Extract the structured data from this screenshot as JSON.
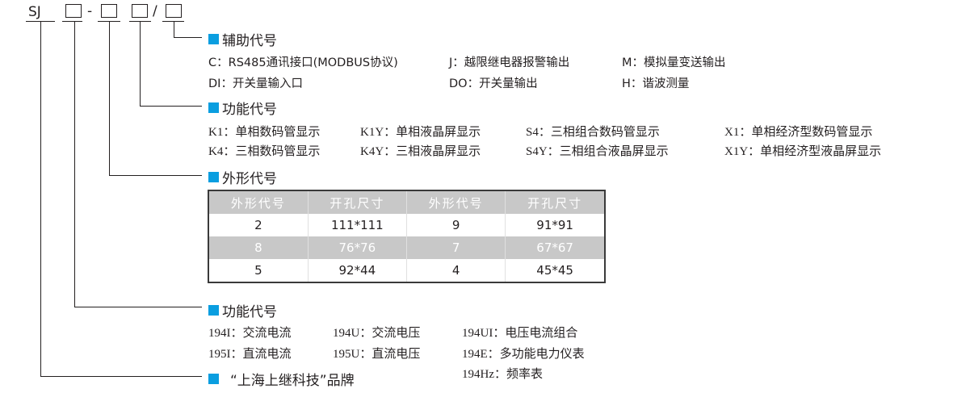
{
  "model": {
    "prefix": "SJ",
    "separator1": "-",
    "separator2": "/"
  },
  "colors": {
    "accent": "#0a9ee0"
  },
  "aux": {
    "title": "辅助代号",
    "items": [
      {
        "text": "C：RS485通讯接口(MODBUS协议)"
      },
      {
        "text": "J：越限继电器报警输出"
      },
      {
        "text": "M：模拟量变送输出"
      },
      {
        "text": "DI：开关量输入口"
      },
      {
        "text": "DO：开关量输出"
      },
      {
        "text": "H：谐波测量"
      }
    ]
  },
  "display": {
    "title": "功能代号",
    "items": [
      {
        "text": "K1：单相数码管显示"
      },
      {
        "text": "K1Y：单相液晶屏显示"
      },
      {
        "text": "S4：三相组合数码管显示"
      },
      {
        "text": "X1：单相经济型数码管显示"
      },
      {
        "text": "K4：三相数码管显示"
      },
      {
        "text": "K4Y：三相液晶屏显示"
      },
      {
        "text": "S4Y：三相组合液晶屏显示"
      },
      {
        "text": "X1Y：单相经济型液晶屏显示"
      }
    ]
  },
  "shape": {
    "title": "外形代号",
    "headers": [
      "外形代号",
      "开孔尺寸",
      "外形代号",
      "开孔尺寸"
    ],
    "rows": [
      [
        "2",
        "111*111",
        "9",
        "91*91"
      ],
      [
        "8",
        "76*76",
        "7",
        "67*67"
      ],
      [
        "5",
        "92*44",
        "4",
        "45*45"
      ]
    ]
  },
  "function": {
    "title": "功能代号",
    "items": [
      {
        "text": "194I：交流电流"
      },
      {
        "text": "194U：交流电压"
      },
      {
        "text": "194UI：电压电流组合"
      },
      {
        "text": "195I：直流电流"
      },
      {
        "text": "195U：直流电压"
      },
      {
        "text": "194E：多功能电力仪表"
      },
      {
        "text": "194Hz：频率表"
      }
    ]
  },
  "brand": {
    "title": "“上海上继科技”品牌"
  }
}
